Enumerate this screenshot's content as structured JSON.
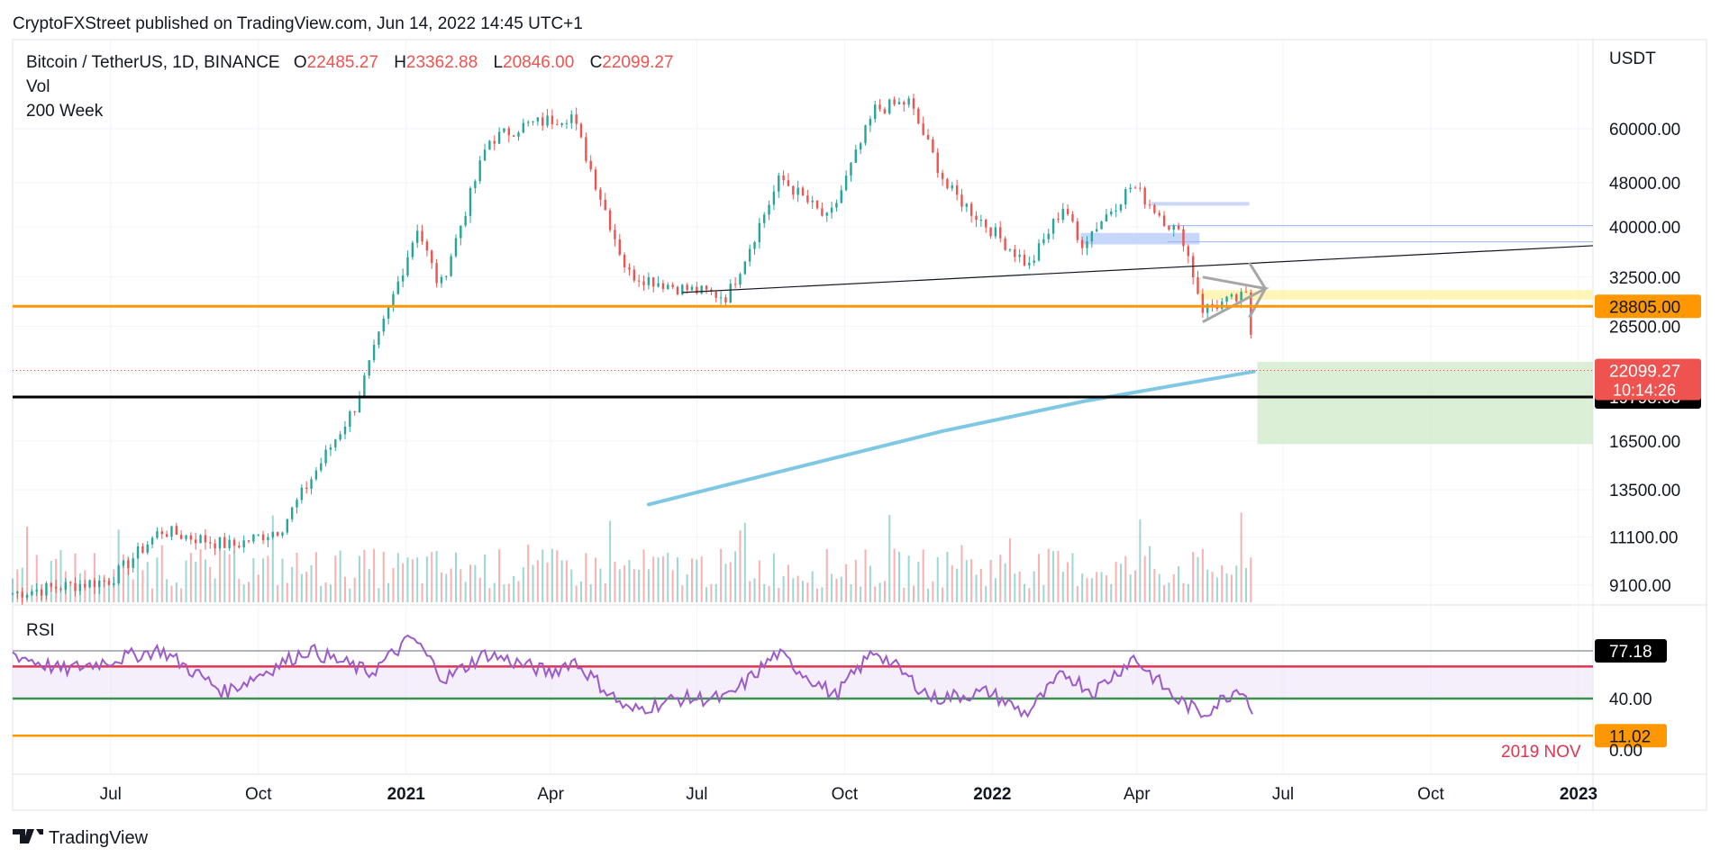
{
  "published": "CryptoFXStreet published on TradingView.com, Jun 14, 2022 14:45 UTC+1",
  "footer_brand": "TradingView",
  "legend": {
    "symbol": "Bitcoin / TetherUS, 1D, BINANCE",
    "o_label": "O",
    "o_value": "22485.27",
    "h_label": "H",
    "h_value": "23362.88",
    "l_label": "L",
    "l_value": "20846.00",
    "c_label": "C",
    "c_value": "22099.27",
    "vol_label": "Vol",
    "ma_label": "200 Week"
  },
  "colors": {
    "up": "#26a69a",
    "down": "#ef5350",
    "orange": "#ff9800",
    "ma": "#7ec8e3",
    "rsi": "#9c5bc8",
    "rsi_upper": "#e0334f",
    "rsi_lower": "#3f8f4f",
    "target_zone": "#cfe9c9",
    "resistance_zone": "#b9cdf7",
    "support_zone": "#fff4b0"
  },
  "chart_data": [
    {
      "type": "candlestick",
      "scale": "log",
      "currency_label": "USDT",
      "ylim": [
        8000,
        80000
      ],
      "y_ticks": [
        "60000.00",
        "48000.00",
        "40000.00",
        "32500.00",
        "26500.00",
        "16500.00",
        "13500.00",
        "11100.00",
        "9100.00"
      ],
      "x_ticks": [
        "Jul",
        "Oct",
        "2021",
        "Apr",
        "Jul",
        "Oct",
        "2022",
        "Apr",
        "Jul",
        "Oct",
        "2023"
      ],
      "bold_x_ticks": [
        "2021",
        "2022",
        "2023"
      ],
      "x_range": [
        "2020-05-01",
        "2023-01-10"
      ],
      "price_series_key_points": [
        {
          "date": "2020-05-01",
          "close": 8800
        },
        {
          "date": "2020-07-01",
          "close": 9300
        },
        {
          "date": "2020-08-01",
          "close": 11400
        },
        {
          "date": "2020-09-15",
          "close": 10700
        },
        {
          "date": "2020-10-15",
          "close": 11500
        },
        {
          "date": "2020-11-30",
          "close": 19000
        },
        {
          "date": "2021-01-08",
          "close": 40000
        },
        {
          "date": "2021-01-22",
          "close": 31000
        },
        {
          "date": "2021-02-21",
          "close": 57000
        },
        {
          "date": "2021-03-13",
          "close": 60500
        },
        {
          "date": "2021-04-14",
          "close": 63500
        },
        {
          "date": "2021-05-19",
          "close": 33000
        },
        {
          "date": "2021-06-22",
          "close": 31000
        },
        {
          "date": "2021-07-20",
          "close": 30000
        },
        {
          "date": "2021-08-22",
          "close": 49000
        },
        {
          "date": "2021-09-21",
          "close": 41000
        },
        {
          "date": "2021-10-20",
          "close": 65000
        },
        {
          "date": "2021-11-10",
          "close": 67000
        },
        {
          "date": "2021-12-04",
          "close": 47000
        },
        {
          "date": "2022-01-24",
          "close": 34000
        },
        {
          "date": "2022-02-15",
          "close": 44000
        },
        {
          "date": "2022-02-24",
          "close": 37000
        },
        {
          "date": "2022-03-29",
          "close": 47500
        },
        {
          "date": "2022-04-30",
          "close": 38000
        },
        {
          "date": "2022-05-12",
          "close": 28500
        },
        {
          "date": "2022-06-09",
          "close": 30000
        },
        {
          "date": "2022-06-13",
          "close": 22099.27
        }
      ],
      "ma_200_week": [
        {
          "date": "2021-06-01",
          "value": 12700
        },
        {
          "date": "2021-09-01",
          "value": 14800
        },
        {
          "date": "2021-12-01",
          "value": 17200
        },
        {
          "date": "2022-03-01",
          "value": 19500
        },
        {
          "date": "2022-06-13",
          "value": 22000
        }
      ],
      "horizontal_levels": [
        {
          "price": 28805.0,
          "color": "orange",
          "label": "28805.00"
        },
        {
          "price": 19798.68,
          "color": "black",
          "label": "19798.68"
        }
      ],
      "last_price": {
        "value": "22099.27",
        "countdown": "10:14:26"
      },
      "trendline": {
        "from": {
          "date": "2021-06-22",
          "price": 30500
        },
        "to": {
          "date": "2023-01-10",
          "price": 37000
        }
      },
      "target_zone": {
        "from_date": "2022-06-15",
        "price_top": 22900,
        "price_bottom": 16300
      }
    },
    {
      "type": "line",
      "title": "RSI",
      "ylim": [
        0,
        100
      ],
      "y_ticks": [
        "40.00",
        "0.00"
      ],
      "levels": [
        {
          "value": 77.18,
          "label": "77.18",
          "color": "black"
        },
        {
          "value": 65,
          "color": "rsi_upper"
        },
        {
          "value": 40,
          "color": "rsi_lower"
        },
        {
          "value": 11.02,
          "label": "11.02",
          "color": "orange"
        }
      ],
      "annotation": "2019 NOV",
      "rsi_key_points": [
        {
          "date": "2020-05-01",
          "value": 75
        },
        {
          "date": "2020-06-01",
          "value": 62
        },
        {
          "date": "2020-08-01",
          "value": 78
        },
        {
          "date": "2020-09-10",
          "value": 45
        },
        {
          "date": "2020-11-01",
          "value": 78
        },
        {
          "date": "2020-12-10",
          "value": 60
        },
        {
          "date": "2021-01-05",
          "value": 88
        },
        {
          "date": "2021-01-25",
          "value": 55
        },
        {
          "date": "2021-02-20",
          "value": 75
        },
        {
          "date": "2021-04-01",
          "value": 60
        },
        {
          "date": "2021-04-15",
          "value": 70
        },
        {
          "date": "2021-05-20",
          "value": 30
        },
        {
          "date": "2021-06-20",
          "value": 40
        },
        {
          "date": "2021-07-20",
          "value": 40
        },
        {
          "date": "2021-08-20",
          "value": 75
        },
        {
          "date": "2021-09-25",
          "value": 42
        },
        {
          "date": "2021-10-20",
          "value": 78
        },
        {
          "date": "2021-11-25",
          "value": 40
        },
        {
          "date": "2021-12-30",
          "value": 45
        },
        {
          "date": "2022-01-22",
          "value": 28
        },
        {
          "date": "2022-02-15",
          "value": 60
        },
        {
          "date": "2022-03-05",
          "value": 45
        },
        {
          "date": "2022-03-30",
          "value": 72
        },
        {
          "date": "2022-04-25",
          "value": 40
        },
        {
          "date": "2022-05-12",
          "value": 28
        },
        {
          "date": "2022-06-05",
          "value": 50
        },
        {
          "date": "2022-06-13",
          "value": 28
        }
      ]
    }
  ]
}
